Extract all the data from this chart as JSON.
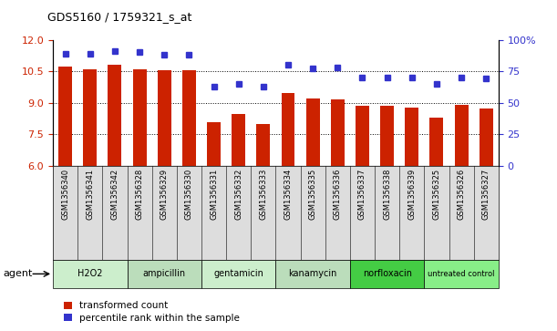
{
  "title": "GDS5160 / 1759321_s_at",
  "samples": [
    "GSM1356340",
    "GSM1356341",
    "GSM1356342",
    "GSM1356328",
    "GSM1356329",
    "GSM1356330",
    "GSM1356331",
    "GSM1356332",
    "GSM1356333",
    "GSM1356334",
    "GSM1356335",
    "GSM1356336",
    "GSM1356337",
    "GSM1356338",
    "GSM1356339",
    "GSM1356325",
    "GSM1356326",
    "GSM1356327"
  ],
  "bar_values": [
    10.7,
    10.6,
    10.8,
    10.6,
    10.55,
    10.55,
    8.05,
    8.45,
    8.0,
    9.45,
    9.2,
    9.15,
    8.85,
    8.85,
    8.75,
    8.3,
    8.9,
    8.7
  ],
  "dot_values": [
    89,
    89,
    91,
    90,
    88,
    88,
    63,
    65,
    63,
    80,
    77,
    78,
    70,
    70,
    70,
    65,
    70,
    69
  ],
  "ylim_left": [
    6,
    12
  ],
  "ylim_right": [
    0,
    100
  ],
  "yticks_left": [
    6,
    7.5,
    9,
    10.5,
    12
  ],
  "yticks_right": [
    0,
    25,
    50,
    75,
    100
  ],
  "bar_color": "#CC2200",
  "dot_color": "#3333CC",
  "groups": [
    {
      "label": "H2O2",
      "start": 0,
      "end": 3,
      "color": "#CCEECC"
    },
    {
      "label": "ampicillin",
      "start": 3,
      "end": 6,
      "color": "#BBDDBB"
    },
    {
      "label": "gentamicin",
      "start": 6,
      "end": 9,
      "color": "#CCEECC"
    },
    {
      "label": "kanamycin",
      "start": 9,
      "end": 12,
      "color": "#BBDDBB"
    },
    {
      "label": "norfloxacin",
      "start": 12,
      "end": 15,
      "color": "#44CC44"
    },
    {
      "label": "untreated control",
      "start": 15,
      "end": 18,
      "color": "#88EE88"
    }
  ],
  "grid_lines": [
    7.5,
    9.0,
    10.5
  ],
  "bar_width": 0.55,
  "ylabel_left_color": "#CC2200",
  "ylabel_right_color": "#3333CC",
  "legend_items": [
    {
      "label": "transformed count",
      "color": "#CC2200"
    },
    {
      "label": "percentile rank within the sample",
      "color": "#3333CC"
    }
  ],
  "agent_label": "agent",
  "tick_label_bg": "#DDDDDD",
  "group_bg_light": "#CCEECC",
  "group_bg_dark": "#44CC44"
}
